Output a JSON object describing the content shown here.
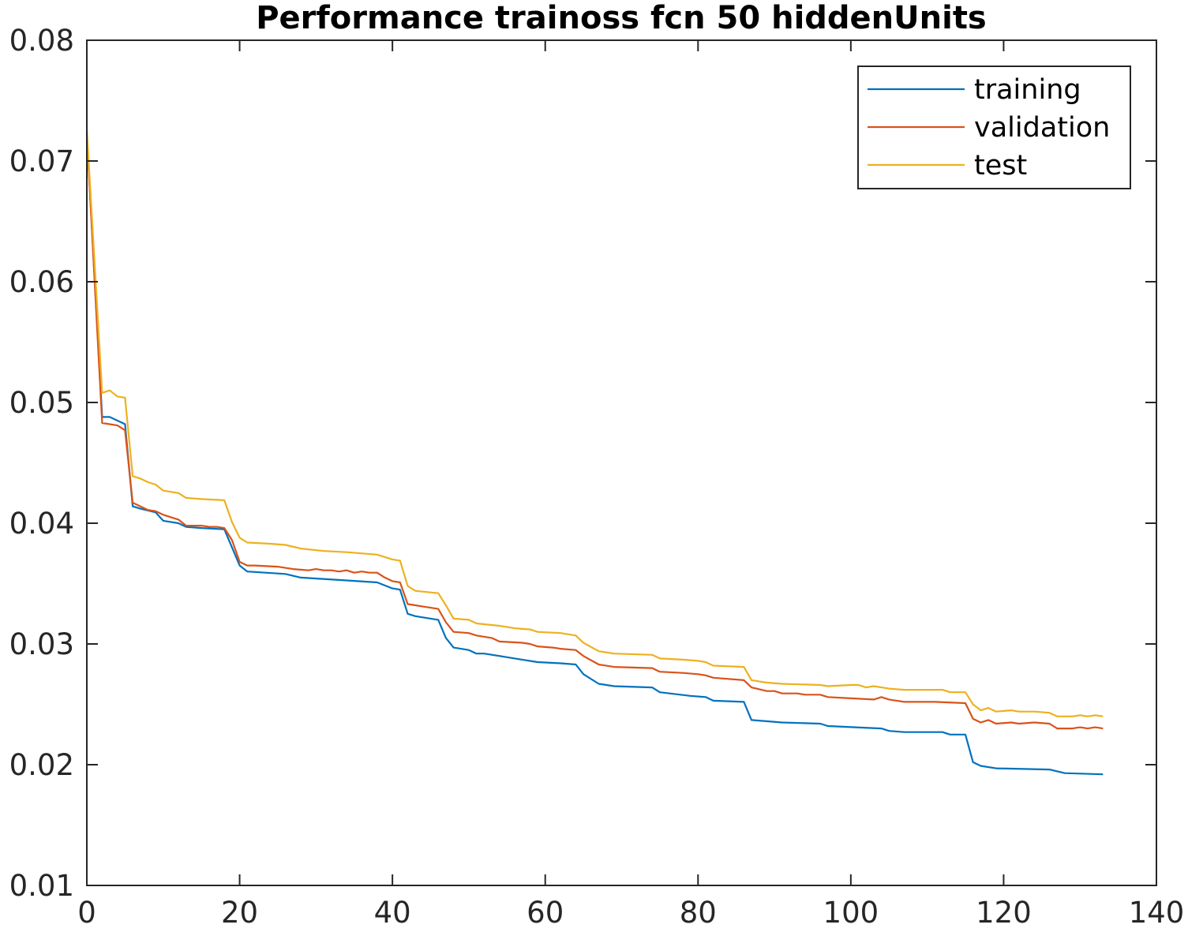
{
  "chart_data": {
    "type": "line",
    "title": "Performance trainoss fcn 50 hiddenUnits",
    "xlabel": "",
    "ylabel": "",
    "xlim": [
      0,
      140
    ],
    "ylim": [
      0.01,
      0.08
    ],
    "xticks": [
      0,
      20,
      40,
      60,
      80,
      100,
      120,
      140
    ],
    "xtick_labels": [
      "0",
      "20",
      "40",
      "60",
      "80",
      "100",
      "120",
      "140"
    ],
    "yticks": [
      0.01,
      0.02,
      0.03,
      0.04,
      0.05,
      0.06,
      0.07,
      0.08
    ],
    "ytick_labels": [
      "0.01",
      "0.02",
      "0.03",
      "0.04",
      "0.05",
      "0.06",
      "0.07",
      "0.08"
    ],
    "grid": false,
    "legend_position": "top-right",
    "series": [
      {
        "name": "training",
        "color": "#0072BD",
        "points": [
          [
            0,
            0.0722
          ],
          [
            2,
            0.0488
          ],
          [
            3,
            0.0488
          ],
          [
            5,
            0.0482
          ],
          [
            6,
            0.0414
          ],
          [
            7,
            0.0412
          ],
          [
            9,
            0.0409
          ],
          [
            10,
            0.0402
          ],
          [
            12,
            0.04
          ],
          [
            13,
            0.0397
          ],
          [
            15,
            0.0396
          ],
          [
            18,
            0.0395
          ],
          [
            20,
            0.0365
          ],
          [
            21,
            0.036
          ],
          [
            26,
            0.0358
          ],
          [
            28,
            0.0355
          ],
          [
            33,
            0.0353
          ],
          [
            38,
            0.0351
          ],
          [
            40,
            0.0346
          ],
          [
            41,
            0.0345
          ],
          [
            42,
            0.0325
          ],
          [
            43,
            0.0323
          ],
          [
            46,
            0.032
          ],
          [
            47,
            0.0305
          ],
          [
            48,
            0.0297
          ],
          [
            50,
            0.0295
          ],
          [
            51,
            0.0292
          ],
          [
            52,
            0.0292
          ],
          [
            55,
            0.0289
          ],
          [
            57,
            0.0287
          ],
          [
            59,
            0.0285
          ],
          [
            62,
            0.0284
          ],
          [
            64,
            0.0283
          ],
          [
            65,
            0.0275
          ],
          [
            67,
            0.0267
          ],
          [
            69,
            0.0265
          ],
          [
            74,
            0.0264
          ],
          [
            75,
            0.026
          ],
          [
            79,
            0.0257
          ],
          [
            81,
            0.0256
          ],
          [
            82,
            0.0253
          ],
          [
            86,
            0.0252
          ],
          [
            87,
            0.0237
          ],
          [
            91,
            0.0235
          ],
          [
            96,
            0.0234
          ],
          [
            97,
            0.0232
          ],
          [
            104,
            0.023
          ],
          [
            105,
            0.0228
          ],
          [
            107,
            0.0227
          ],
          [
            112,
            0.0227
          ],
          [
            113,
            0.0225
          ],
          [
            115,
            0.0225
          ],
          [
            116,
            0.0202
          ],
          [
            117,
            0.0199
          ],
          [
            119,
            0.0197
          ],
          [
            126,
            0.0196
          ],
          [
            128,
            0.0193
          ],
          [
            133,
            0.0192
          ]
        ]
      },
      {
        "name": "validation",
        "color": "#D95319",
        "points": [
          [
            0,
            0.0722
          ],
          [
            2,
            0.0483
          ],
          [
            4,
            0.0481
          ],
          [
            5,
            0.0477
          ],
          [
            6,
            0.0417
          ],
          [
            8,
            0.0411
          ],
          [
            9,
            0.041
          ],
          [
            10,
            0.0407
          ],
          [
            11,
            0.0405
          ],
          [
            12,
            0.0403
          ],
          [
            13,
            0.0398
          ],
          [
            14,
            0.0398
          ],
          [
            15,
            0.0398
          ],
          [
            16,
            0.0397
          ],
          [
            17,
            0.0397
          ],
          [
            18,
            0.0396
          ],
          [
            19,
            0.0386
          ],
          [
            20,
            0.0368
          ],
          [
            21,
            0.0365
          ],
          [
            22,
            0.0365
          ],
          [
            25,
            0.0364
          ],
          [
            27,
            0.0362
          ],
          [
            29,
            0.0361
          ],
          [
            30,
            0.0362
          ],
          [
            31,
            0.0361
          ],
          [
            32,
            0.0361
          ],
          [
            33,
            0.036
          ],
          [
            34,
            0.0361
          ],
          [
            35,
            0.0359
          ],
          [
            36,
            0.036
          ],
          [
            37,
            0.0359
          ],
          [
            38,
            0.0359
          ],
          [
            39,
            0.0355
          ],
          [
            40,
            0.0352
          ],
          [
            41,
            0.0351
          ],
          [
            42,
            0.0333
          ],
          [
            43,
            0.0332
          ],
          [
            44,
            0.0331
          ],
          [
            46,
            0.0329
          ],
          [
            47,
            0.0318
          ],
          [
            48,
            0.031
          ],
          [
            50,
            0.0309
          ],
          [
            51,
            0.0307
          ],
          [
            53,
            0.0305
          ],
          [
            54,
            0.0302
          ],
          [
            57,
            0.0301
          ],
          [
            58,
            0.03
          ],
          [
            59,
            0.0298
          ],
          [
            61,
            0.0297
          ],
          [
            62,
            0.0296
          ],
          [
            64,
            0.0295
          ],
          [
            65,
            0.029
          ],
          [
            67,
            0.0283
          ],
          [
            69,
            0.0281
          ],
          [
            74,
            0.028
          ],
          [
            75,
            0.0277
          ],
          [
            78,
            0.0276
          ],
          [
            80,
            0.0275
          ],
          [
            81,
            0.0274
          ],
          [
            82,
            0.0272
          ],
          [
            86,
            0.027
          ],
          [
            87,
            0.0264
          ],
          [
            89,
            0.0261
          ],
          [
            90,
            0.0261
          ],
          [
            91,
            0.0259
          ],
          [
            93,
            0.0259
          ],
          [
            94,
            0.0258
          ],
          [
            95,
            0.0258
          ],
          [
            96,
            0.0258
          ],
          [
            97,
            0.0256
          ],
          [
            100,
            0.0255
          ],
          [
            103,
            0.0254
          ],
          [
            104,
            0.0256
          ],
          [
            105,
            0.0254
          ],
          [
            106,
            0.0253
          ],
          [
            107,
            0.0252
          ],
          [
            111,
            0.0252
          ],
          [
            115,
            0.0251
          ],
          [
            116,
            0.0238
          ],
          [
            117,
            0.0235
          ],
          [
            118,
            0.0237
          ],
          [
            119,
            0.0234
          ],
          [
            121,
            0.0235
          ],
          [
            122,
            0.0234
          ],
          [
            124,
            0.0235
          ],
          [
            126,
            0.0234
          ],
          [
            127,
            0.023
          ],
          [
            129,
            0.023
          ],
          [
            130,
            0.0231
          ],
          [
            131,
            0.023
          ],
          [
            132,
            0.0231
          ],
          [
            133,
            0.023
          ]
        ]
      },
      {
        "name": "test",
        "color": "#EDB120",
        "points": [
          [
            0,
            0.0726
          ],
          [
            2,
            0.0508
          ],
          [
            3,
            0.051
          ],
          [
            4,
            0.0505
          ],
          [
            5,
            0.0504
          ],
          [
            6,
            0.0439
          ],
          [
            7,
            0.0437
          ],
          [
            8,
            0.0434
          ],
          [
            9,
            0.0432
          ],
          [
            10,
            0.0427
          ],
          [
            12,
            0.0425
          ],
          [
            13,
            0.0421
          ],
          [
            15,
            0.042
          ],
          [
            18,
            0.0419
          ],
          [
            19,
            0.0401
          ],
          [
            20,
            0.0388
          ],
          [
            21,
            0.0384
          ],
          [
            24,
            0.0383
          ],
          [
            26,
            0.0382
          ],
          [
            28,
            0.0379
          ],
          [
            31,
            0.0377
          ],
          [
            34,
            0.0376
          ],
          [
            38,
            0.0374
          ],
          [
            40,
            0.037
          ],
          [
            41,
            0.0369
          ],
          [
            42,
            0.0348
          ],
          [
            43,
            0.0344
          ],
          [
            46,
            0.0342
          ],
          [
            47,
            0.0332
          ],
          [
            48,
            0.0321
          ],
          [
            50,
            0.032
          ],
          [
            51,
            0.0317
          ],
          [
            54,
            0.0315
          ],
          [
            56,
            0.0313
          ],
          [
            58,
            0.0312
          ],
          [
            59,
            0.031
          ],
          [
            62,
            0.0309
          ],
          [
            64,
            0.0307
          ],
          [
            65,
            0.0301
          ],
          [
            67,
            0.0294
          ],
          [
            69,
            0.0292
          ],
          [
            74,
            0.0291
          ],
          [
            75,
            0.0288
          ],
          [
            78,
            0.0287
          ],
          [
            80,
            0.0286
          ],
          [
            81,
            0.0285
          ],
          [
            82,
            0.0282
          ],
          [
            86,
            0.0281
          ],
          [
            87,
            0.027
          ],
          [
            89,
            0.0268
          ],
          [
            91,
            0.0267
          ],
          [
            96,
            0.0266
          ],
          [
            97,
            0.0265
          ],
          [
            100,
            0.0266
          ],
          [
            101,
            0.0266
          ],
          [
            102,
            0.0264
          ],
          [
            103,
            0.0265
          ],
          [
            105,
            0.0263
          ],
          [
            107,
            0.0262
          ],
          [
            112,
            0.0262
          ],
          [
            113,
            0.026
          ],
          [
            115,
            0.026
          ],
          [
            116,
            0.025
          ],
          [
            117,
            0.0245
          ],
          [
            118,
            0.0247
          ],
          [
            119,
            0.0244
          ],
          [
            121,
            0.0245
          ],
          [
            122,
            0.0244
          ],
          [
            124,
            0.0244
          ],
          [
            126,
            0.0243
          ],
          [
            127,
            0.024
          ],
          [
            129,
            0.024
          ],
          [
            130,
            0.0241
          ],
          [
            131,
            0.024
          ],
          [
            132,
            0.0241
          ],
          [
            133,
            0.024
          ]
        ]
      }
    ]
  }
}
